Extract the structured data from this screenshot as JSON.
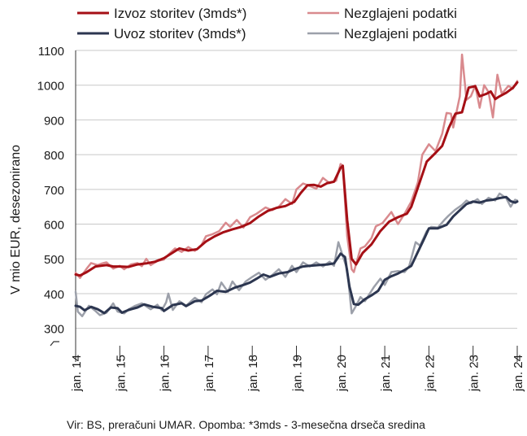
{
  "chart_data": {
    "type": "line",
    "ylabel": "V mio EUR, desezonirano",
    "ylim": [
      250,
      1100
    ],
    "yticks": [
      300,
      400,
      500,
      600,
      700,
      800,
      900,
      1000,
      1100
    ],
    "ytick_labels": [
      "300",
      "400",
      "500",
      "600",
      "700",
      "800",
      "900",
      "1000",
      "1100"
    ],
    "xlim": [
      2014,
      2024
    ],
    "xticks": [
      2014,
      2015,
      2016,
      2017,
      2018,
      2019,
      2020,
      2021,
      2022,
      2023,
      2024
    ],
    "xtick_labels": [
      "jan. 14",
      "jan. 15",
      "jan. 16",
      "jan. 17",
      "jan. 18",
      "jan. 19",
      "jan. 20",
      "jan. 21",
      "jan. 22",
      "jan. 23",
      "jan. 24"
    ],
    "legend_placement": "top",
    "source": "Vir: BS, preračuni UMAR. Opomba: *3mds - 3-mesečna drseča sredina",
    "series": [
      {
        "name": "Izvoz storitev (3mds*)",
        "color": "#a50f15",
        "width": 3,
        "points": [
          [
            2014.0,
            455
          ],
          [
            2014.1,
            452
          ],
          [
            2014.25,
            462
          ],
          [
            2014.45,
            478
          ],
          [
            2014.7,
            482
          ],
          [
            2014.85,
            478
          ],
          [
            2015.0,
            478
          ],
          [
            2015.2,
            477
          ],
          [
            2015.4,
            484
          ],
          [
            2015.6,
            487
          ],
          [
            2015.8,
            492
          ],
          [
            2016.0,
            502
          ],
          [
            2016.2,
            518
          ],
          [
            2016.35,
            530
          ],
          [
            2016.55,
            524
          ],
          [
            2016.75,
            528
          ],
          [
            2016.95,
            550
          ],
          [
            2017.15,
            565
          ],
          [
            2017.35,
            577
          ],
          [
            2017.55,
            585
          ],
          [
            2017.75,
            592
          ],
          [
            2017.95,
            603
          ],
          [
            2018.15,
            622
          ],
          [
            2018.35,
            638
          ],
          [
            2018.55,
            647
          ],
          [
            2018.75,
            652
          ],
          [
            2018.95,
            664
          ],
          [
            2019.1,
            690
          ],
          [
            2019.25,
            712
          ],
          [
            2019.4,
            713
          ],
          [
            2019.55,
            708
          ],
          [
            2019.7,
            718
          ],
          [
            2019.85,
            722
          ],
          [
            2020.0,
            762
          ],
          [
            2020.05,
            768
          ],
          [
            2020.15,
            612
          ],
          [
            2020.25,
            500
          ],
          [
            2020.35,
            484
          ],
          [
            2020.5,
            517
          ],
          [
            2020.7,
            542
          ],
          [
            2020.9,
            580
          ],
          [
            2021.1,
            607
          ],
          [
            2021.3,
            620
          ],
          [
            2021.5,
            630
          ],
          [
            2021.6,
            650
          ],
          [
            2021.75,
            705
          ],
          [
            2021.95,
            780
          ],
          [
            2022.15,
            805
          ],
          [
            2022.3,
            825
          ],
          [
            2022.45,
            877
          ],
          [
            2022.6,
            918
          ],
          [
            2022.75,
            922
          ],
          [
            2022.9,
            993
          ],
          [
            2023.05,
            997
          ],
          [
            2023.15,
            968
          ],
          [
            2023.3,
            975
          ],
          [
            2023.4,
            982
          ],
          [
            2023.5,
            960
          ],
          [
            2023.6,
            968
          ],
          [
            2023.75,
            978
          ],
          [
            2023.9,
            992
          ],
          [
            2024.0,
            1008
          ]
        ]
      },
      {
        "name": "Nezglajeni podatki",
        "color": "#d98a8e",
        "width": 2.5,
        "points": [
          [
            2014.0,
            460
          ],
          [
            2014.1,
            445
          ],
          [
            2014.25,
            472
          ],
          [
            2014.35,
            488
          ],
          [
            2014.5,
            482
          ],
          [
            2014.6,
            487
          ],
          [
            2014.7,
            490
          ],
          [
            2014.85,
            472
          ],
          [
            2015.0,
            480
          ],
          [
            2015.1,
            470
          ],
          [
            2015.25,
            484
          ],
          [
            2015.4,
            488
          ],
          [
            2015.5,
            479
          ],
          [
            2015.6,
            500
          ],
          [
            2015.7,
            482
          ],
          [
            2015.85,
            494
          ],
          [
            2016.0,
            498
          ],
          [
            2016.1,
            512
          ],
          [
            2016.25,
            530
          ],
          [
            2016.4,
            520
          ],
          [
            2016.55,
            534
          ],
          [
            2016.7,
            523
          ],
          [
            2016.85,
            540
          ],
          [
            2016.95,
            565
          ],
          [
            2017.1,
            571
          ],
          [
            2017.25,
            580
          ],
          [
            2017.4,
            604
          ],
          [
            2017.5,
            592
          ],
          [
            2017.65,
            612
          ],
          [
            2017.8,
            590
          ],
          [
            2017.95,
            620
          ],
          [
            2018.1,
            630
          ],
          [
            2018.3,
            648
          ],
          [
            2018.45,
            640
          ],
          [
            2018.6,
            650
          ],
          [
            2018.75,
            672
          ],
          [
            2018.9,
            658
          ],
          [
            2019.0,
            700
          ],
          [
            2019.15,
            717
          ],
          [
            2019.3,
            710
          ],
          [
            2019.45,
            702
          ],
          [
            2019.6,
            733
          ],
          [
            2019.75,
            718
          ],
          [
            2019.9,
            725
          ],
          [
            2020.0,
            773
          ],
          [
            2020.05,
            768
          ],
          [
            2020.15,
            565
          ],
          [
            2020.25,
            470
          ],
          [
            2020.3,
            462
          ],
          [
            2020.45,
            530
          ],
          [
            2020.55,
            536
          ],
          [
            2020.7,
            560
          ],
          [
            2020.8,
            594
          ],
          [
            2020.95,
            603
          ],
          [
            2021.15,
            635
          ],
          [
            2021.3,
            600
          ],
          [
            2021.45,
            630
          ],
          [
            2021.6,
            665
          ],
          [
            2021.75,
            720
          ],
          [
            2021.85,
            800
          ],
          [
            2022.0,
            830
          ],
          [
            2022.15,
            810
          ],
          [
            2022.3,
            860
          ],
          [
            2022.4,
            920
          ],
          [
            2022.5,
            918
          ],
          [
            2022.55,
            878
          ],
          [
            2022.7,
            968
          ],
          [
            2022.75,
            1088
          ],
          [
            2022.85,
            958
          ],
          [
            2022.95,
            968
          ],
          [
            2023.05,
            999
          ],
          [
            2023.15,
            935
          ],
          [
            2023.25,
            1000
          ],
          [
            2023.35,
            980
          ],
          [
            2023.45,
            907
          ],
          [
            2023.55,
            1030
          ],
          [
            2023.65,
            975
          ],
          [
            2023.8,
            998
          ],
          [
            2023.9,
            990
          ],
          [
            2024.0,
            1012
          ]
        ]
      },
      {
        "name": "Uvoz storitev (3mds*)",
        "color": "#2c3650",
        "width": 3,
        "points": [
          [
            2014.0,
            365
          ],
          [
            2014.1,
            362
          ],
          [
            2014.2,
            352
          ],
          [
            2014.35,
            362
          ],
          [
            2014.5,
            355
          ],
          [
            2014.65,
            344
          ],
          [
            2014.8,
            360
          ],
          [
            2014.95,
            358
          ],
          [
            2015.05,
            345
          ],
          [
            2015.2,
            353
          ],
          [
            2015.4,
            360
          ],
          [
            2015.55,
            369
          ],
          [
            2015.75,
            362
          ],
          [
            2015.95,
            358
          ],
          [
            2016.0,
            350
          ],
          [
            2016.2,
            367
          ],
          [
            2016.4,
            372
          ],
          [
            2016.5,
            364
          ],
          [
            2016.7,
            378
          ],
          [
            2016.85,
            380
          ],
          [
            2017.05,
            395
          ],
          [
            2017.2,
            408
          ],
          [
            2017.4,
            405
          ],
          [
            2017.6,
            417
          ],
          [
            2017.8,
            425
          ],
          [
            2017.95,
            432
          ],
          [
            2018.1,
            443
          ],
          [
            2018.25,
            455
          ],
          [
            2018.4,
            448
          ],
          [
            2018.6,
            458
          ],
          [
            2018.8,
            462
          ],
          [
            2018.95,
            470
          ],
          [
            2019.15,
            478
          ],
          [
            2019.3,
            480
          ],
          [
            2019.5,
            482
          ],
          [
            2019.7,
            484
          ],
          [
            2019.85,
            487
          ],
          [
            2020.0,
            515
          ],
          [
            2020.1,
            505
          ],
          [
            2020.2,
            420
          ],
          [
            2020.3,
            370
          ],
          [
            2020.4,
            368
          ],
          [
            2020.55,
            384
          ],
          [
            2020.7,
            395
          ],
          [
            2020.85,
            408
          ],
          [
            2021.0,
            440
          ],
          [
            2021.15,
            450
          ],
          [
            2021.3,
            458
          ],
          [
            2021.45,
            468
          ],
          [
            2021.6,
            480
          ],
          [
            2021.75,
            520
          ],
          [
            2021.9,
            560
          ],
          [
            2022.0,
            588
          ],
          [
            2022.2,
            588
          ],
          [
            2022.4,
            598
          ],
          [
            2022.55,
            622
          ],
          [
            2022.7,
            640
          ],
          [
            2022.85,
            658
          ],
          [
            2023.0,
            665
          ],
          [
            2023.15,
            662
          ],
          [
            2023.3,
            668
          ],
          [
            2023.45,
            670
          ],
          [
            2023.6,
            675
          ],
          [
            2023.75,
            678
          ],
          [
            2023.85,
            666
          ],
          [
            2023.95,
            662
          ],
          [
            2024.0,
            665
          ]
        ]
      },
      {
        "name": "Nezglajeni podatki",
        "color": "#9ca0aa",
        "width": 2.5,
        "points": [
          [
            2014.0,
            405
          ],
          [
            2014.05,
            348
          ],
          [
            2014.15,
            335
          ],
          [
            2014.3,
            365
          ],
          [
            2014.45,
            350
          ],
          [
            2014.55,
            338
          ],
          [
            2014.7,
            345
          ],
          [
            2014.85,
            372
          ],
          [
            2014.95,
            348
          ],
          [
            2015.1,
            343
          ],
          [
            2015.2,
            355
          ],
          [
            2015.35,
            365
          ],
          [
            2015.5,
            372
          ],
          [
            2015.7,
            355
          ],
          [
            2015.85,
            368
          ],
          [
            2015.95,
            352
          ],
          [
            2016.05,
            375
          ],
          [
            2016.1,
            400
          ],
          [
            2016.2,
            353
          ],
          [
            2016.35,
            378
          ],
          [
            2016.5,
            365
          ],
          [
            2016.7,
            388
          ],
          [
            2016.85,
            375
          ],
          [
            2016.95,
            398
          ],
          [
            2017.1,
            412
          ],
          [
            2017.2,
            398
          ],
          [
            2017.3,
            432
          ],
          [
            2017.45,
            405
          ],
          [
            2017.55,
            435
          ],
          [
            2017.7,
            410
          ],
          [
            2017.85,
            435
          ],
          [
            2018.0,
            448
          ],
          [
            2018.15,
            460
          ],
          [
            2018.3,
            440
          ],
          [
            2018.45,
            453
          ],
          [
            2018.6,
            470
          ],
          [
            2018.75,
            448
          ],
          [
            2018.9,
            480
          ],
          [
            2019.0,
            462
          ],
          [
            2019.15,
            490
          ],
          [
            2019.3,
            478
          ],
          [
            2019.45,
            490
          ],
          [
            2019.6,
            478
          ],
          [
            2019.75,
            492
          ],
          [
            2019.85,
            480
          ],
          [
            2019.95,
            548
          ],
          [
            2020.05,
            508
          ],
          [
            2020.15,
            470
          ],
          [
            2020.25,
            343
          ],
          [
            2020.35,
            365
          ],
          [
            2020.45,
            390
          ],
          [
            2020.55,
            378
          ],
          [
            2020.65,
            398
          ],
          [
            2020.75,
            418
          ],
          [
            2020.9,
            443
          ],
          [
            2021.0,
            425
          ],
          [
            2021.15,
            462
          ],
          [
            2021.3,
            465
          ],
          [
            2021.45,
            462
          ],
          [
            2021.55,
            478
          ],
          [
            2021.7,
            548
          ],
          [
            2021.8,
            538
          ],
          [
            2021.95,
            580
          ],
          [
            2022.05,
            592
          ],
          [
            2022.2,
            590
          ],
          [
            2022.35,
            612
          ],
          [
            2022.45,
            625
          ],
          [
            2022.6,
            642
          ],
          [
            2022.75,
            655
          ],
          [
            2022.85,
            668
          ],
          [
            2022.95,
            660
          ],
          [
            2023.1,
            672
          ],
          [
            2023.2,
            658
          ],
          [
            2023.35,
            676
          ],
          [
            2023.5,
            668
          ],
          [
            2023.6,
            688
          ],
          [
            2023.75,
            675
          ],
          [
            2023.85,
            650
          ],
          [
            2023.95,
            670
          ],
          [
            2024.0,
            668
          ]
        ]
      }
    ]
  }
}
